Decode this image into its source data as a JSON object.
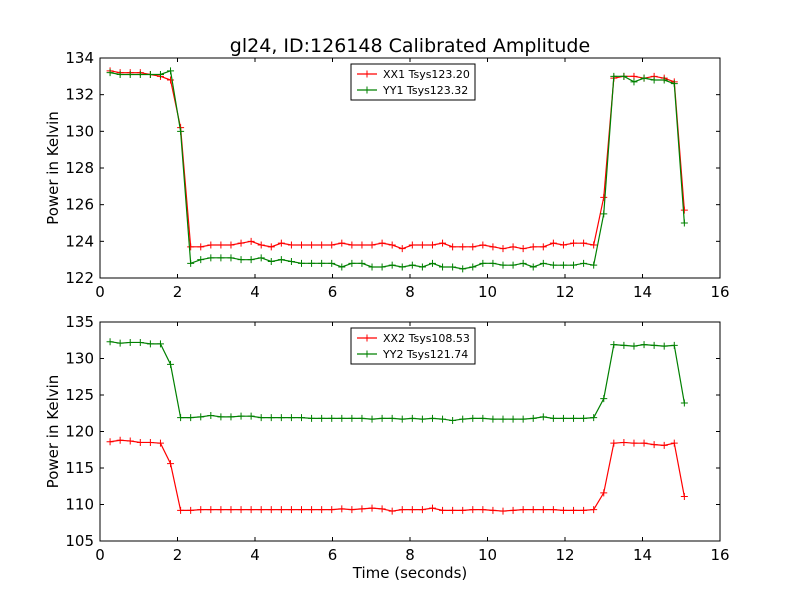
{
  "figure": {
    "title": "gl24, ID:126148 Calibrated Amplitude"
  },
  "chart_data": [
    {
      "type": "line",
      "ylabel": "Power in Kelvin",
      "xlabel": "",
      "xlim": [
        0,
        16
      ],
      "ylim": [
        122,
        134
      ],
      "xticks": [
        0,
        2,
        4,
        6,
        8,
        10,
        12,
        14,
        16
      ],
      "yticks": [
        122,
        124,
        126,
        128,
        130,
        132,
        134
      ],
      "legend_position": "upper center",
      "grid": false,
      "x": [
        0.26,
        0.52,
        0.78,
        1.04,
        1.3,
        1.56,
        1.82,
        2.08,
        2.34,
        2.6,
        2.86,
        3.12,
        3.38,
        3.64,
        3.9,
        4.16,
        4.42,
        4.68,
        4.94,
        5.2,
        5.46,
        5.72,
        5.98,
        6.24,
        6.5,
        6.76,
        7.02,
        7.28,
        7.54,
        7.8,
        8.06,
        8.32,
        8.58,
        8.84,
        9.1,
        9.36,
        9.62,
        9.88,
        10.14,
        10.4,
        10.66,
        10.92,
        11.18,
        11.44,
        11.7,
        11.96,
        12.22,
        12.48,
        12.74,
        13.0,
        13.26,
        13.52,
        13.78,
        14.04,
        14.3,
        14.56,
        14.82,
        15.08
      ],
      "series": [
        {
          "name": "XX1 Tsys123.20",
          "color": "#ff0000",
          "values": [
            133.3,
            133.2,
            133.2,
            133.2,
            133.1,
            133.0,
            132.8,
            130.2,
            123.7,
            123.7,
            123.8,
            123.8,
            123.8,
            123.9,
            124.0,
            123.8,
            123.7,
            123.9,
            123.8,
            123.8,
            123.8,
            123.8,
            123.8,
            123.9,
            123.8,
            123.8,
            123.8,
            123.9,
            123.8,
            123.6,
            123.8,
            123.8,
            123.8,
            123.9,
            123.7,
            123.7,
            123.7,
            123.8,
            123.7,
            123.6,
            123.7,
            123.6,
            123.7,
            123.7,
            123.9,
            123.8,
            123.9,
            123.9,
            123.8,
            126.4,
            132.9,
            133.0,
            133.0,
            132.9,
            133.0,
            132.9,
            132.7,
            125.7
          ]
        },
        {
          "name": "YY1 Tsys123.32",
          "color": "#008000",
          "values": [
            133.2,
            133.1,
            133.1,
            133.1,
            133.1,
            133.1,
            133.3,
            130.0,
            122.8,
            123.0,
            123.1,
            123.1,
            123.1,
            123.0,
            123.0,
            123.1,
            122.9,
            123.0,
            122.9,
            122.8,
            122.8,
            122.8,
            122.8,
            122.6,
            122.8,
            122.8,
            122.6,
            122.6,
            122.7,
            122.6,
            122.7,
            122.6,
            122.8,
            122.6,
            122.6,
            122.5,
            122.6,
            122.8,
            122.8,
            122.7,
            122.7,
            122.8,
            122.6,
            122.8,
            122.7,
            122.7,
            122.7,
            122.8,
            122.7,
            125.5,
            133.0,
            133.0,
            132.7,
            132.9,
            132.8,
            132.8,
            132.6,
            125.0
          ]
        }
      ]
    },
    {
      "type": "line",
      "ylabel": "Power in Kelvin",
      "xlabel": "Time (seconds)",
      "xlim": [
        0,
        16
      ],
      "ylim": [
        105,
        135
      ],
      "xticks": [
        0,
        2,
        4,
        6,
        8,
        10,
        12,
        14,
        16
      ],
      "yticks": [
        105,
        110,
        115,
        120,
        125,
        130,
        135
      ],
      "legend_position": "upper center",
      "grid": false,
      "x": [
        0.26,
        0.52,
        0.78,
        1.04,
        1.3,
        1.56,
        1.82,
        2.08,
        2.34,
        2.6,
        2.86,
        3.12,
        3.38,
        3.64,
        3.9,
        4.16,
        4.42,
        4.68,
        4.94,
        5.2,
        5.46,
        5.72,
        5.98,
        6.24,
        6.5,
        6.76,
        7.02,
        7.28,
        7.54,
        7.8,
        8.06,
        8.32,
        8.58,
        8.84,
        9.1,
        9.36,
        9.62,
        9.88,
        10.14,
        10.4,
        10.66,
        10.92,
        11.18,
        11.44,
        11.7,
        11.96,
        12.22,
        12.48,
        12.74,
        13.0,
        13.26,
        13.52,
        13.78,
        14.04,
        14.3,
        14.56,
        14.82,
        15.08
      ],
      "series": [
        {
          "name": "XX2 Tsys108.53",
          "color": "#ff0000",
          "values": [
            118.6,
            118.8,
            118.7,
            118.5,
            118.5,
            118.4,
            115.6,
            109.2,
            109.2,
            109.3,
            109.3,
            109.3,
            109.3,
            109.3,
            109.3,
            109.3,
            109.3,
            109.3,
            109.3,
            109.3,
            109.3,
            109.3,
            109.3,
            109.4,
            109.3,
            109.4,
            109.5,
            109.4,
            109.1,
            109.3,
            109.3,
            109.3,
            109.5,
            109.2,
            109.2,
            109.2,
            109.3,
            109.3,
            109.2,
            109.1,
            109.2,
            109.3,
            109.3,
            109.3,
            109.3,
            109.2,
            109.2,
            109.2,
            109.3,
            111.6,
            118.4,
            118.5,
            118.4,
            118.4,
            118.2,
            118.1,
            118.4,
            111.1
          ]
        },
        {
          "name": "YY2 Tsys121.74",
          "color": "#008000",
          "values": [
            132.3,
            132.1,
            132.2,
            132.2,
            132.0,
            132.0,
            129.2,
            121.9,
            121.9,
            122.0,
            122.2,
            122.0,
            122.0,
            122.1,
            122.1,
            121.9,
            121.9,
            121.9,
            121.9,
            121.9,
            121.8,
            121.8,
            121.8,
            121.8,
            121.8,
            121.8,
            121.7,
            121.8,
            121.8,
            121.7,
            121.8,
            121.7,
            121.8,
            121.7,
            121.5,
            121.7,
            121.8,
            121.8,
            121.7,
            121.7,
            121.7,
            121.7,
            121.8,
            122.0,
            121.8,
            121.8,
            121.8,
            121.8,
            121.9,
            124.5,
            131.9,
            131.8,
            131.7,
            131.9,
            131.8,
            131.7,
            131.8,
            123.9
          ]
        }
      ]
    }
  ]
}
